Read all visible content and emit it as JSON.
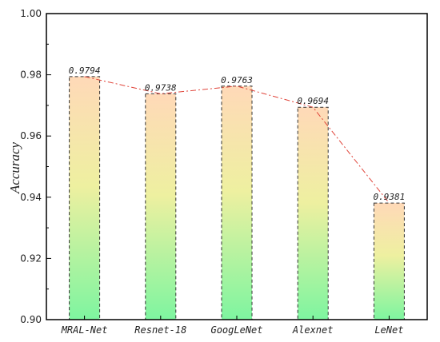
{
  "chart_data": {
    "type": "bar",
    "categories": [
      "MRAL-Net",
      "Resnet-18",
      "GoogLeNet",
      "Alexnet",
      "LeNet"
    ],
    "values": [
      0.9794,
      0.9738,
      0.9763,
      0.9694,
      0.9381
    ],
    "data_labels": [
      "0.9794",
      "0.9738",
      "0.9763",
      "0.9694",
      "0.9381"
    ],
    "ylabel": "Accuracy",
    "xlabel": "",
    "ylim": [
      0.9,
      1.0
    ],
    "yticks": [
      0.9,
      0.92,
      0.94,
      0.96,
      0.98,
      1.0
    ],
    "ytick_labels": [
      "0.90",
      "0.92",
      "0.94",
      "0.96",
      "0.98",
      "1.00"
    ],
    "grid": false,
    "legend": "none",
    "overlay_line": true
  },
  "colors": {
    "bar_top": "#ffd9b8",
    "bar_mid": "#eef0a0",
    "bar_bottom": "#7ef5a0",
    "bar_border": "#333333",
    "line": "#e0443a",
    "axis": "#000000"
  }
}
